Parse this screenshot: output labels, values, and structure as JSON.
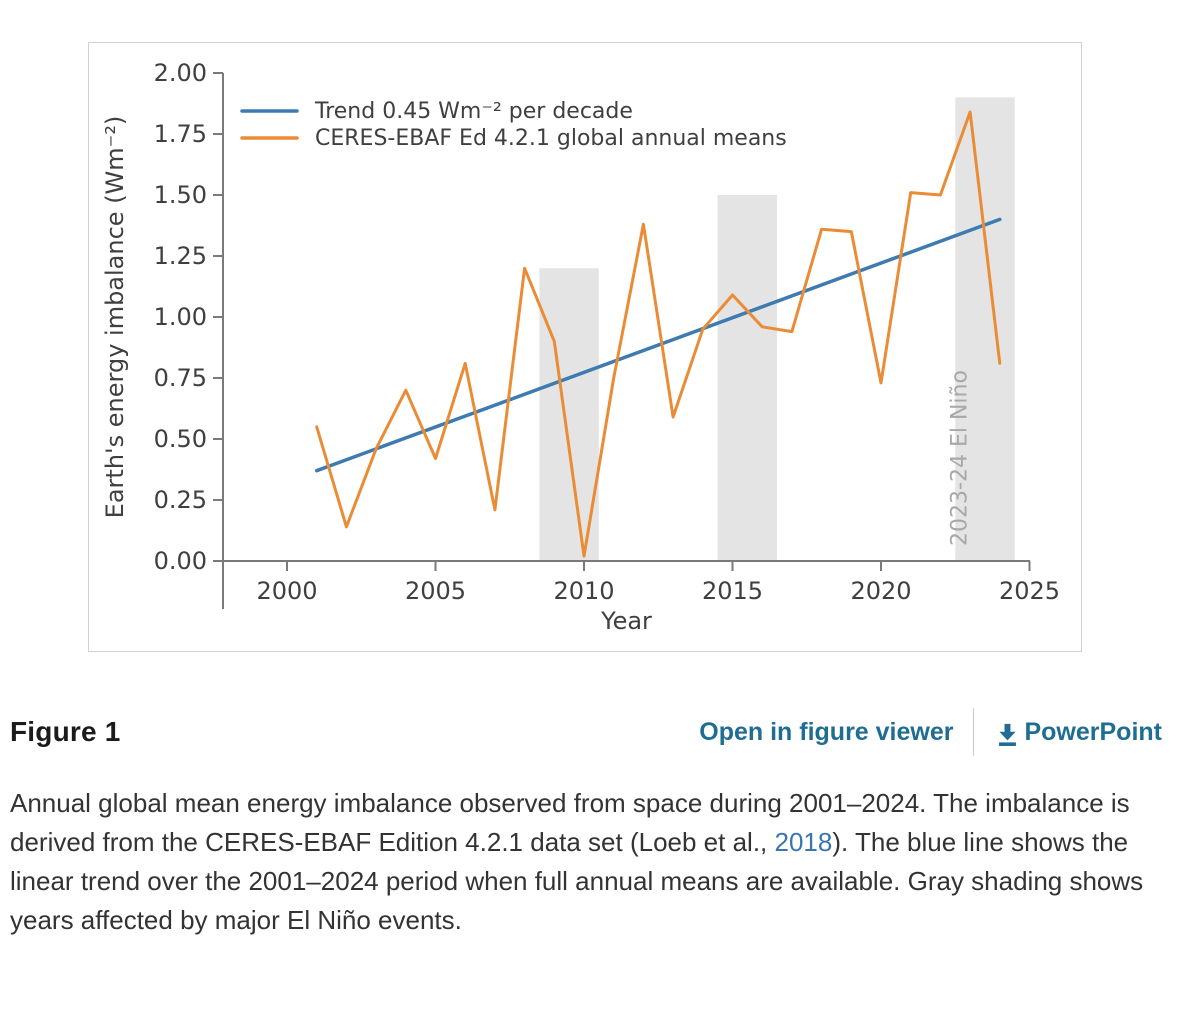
{
  "figure_bar": {
    "title": "Figure 1",
    "open_link": "Open in figure viewer",
    "powerpoint_link": "PowerPoint"
  },
  "caption": {
    "text_before_link": "Annual global mean energy imbalance observed from space during 2001–2024. The imbalance is derived from the CERES-EBAF Edition 4.2.1 data set (Loeb et al., ",
    "link": "2018",
    "text_after_link": "). The blue line shows the linear trend over the 2001–2024 period when full annual means are available. Gray shading shows years affected by major El Niño events."
  },
  "colors": {
    "trend_blue": "#3d7bb0",
    "series_orange": "#ea8c35",
    "band_gray": "#e4e4e4",
    "band_label_gray": "#a8a8a8",
    "axis_gray": "#7a7a7a",
    "tick_text": "#3f3f3f",
    "link_teal": "#1f6d93",
    "caption_link_blue": "#3a75b0"
  },
  "chart_data": {
    "type": "line",
    "title": "",
    "xlabel": "Year",
    "ylabel": "Earth's energy imbalance (Wm⁻²)",
    "xlim": [
      1998,
      2026
    ],
    "ylim": [
      0.0,
      2.0
    ],
    "grid": false,
    "legend_position": "upper left",
    "x_ticks": [
      2000,
      2005,
      2010,
      2015,
      2020,
      2025
    ],
    "y_ticks": [
      "0.00",
      "0.25",
      "0.50",
      "0.75",
      "1.00",
      "1.25",
      "1.50",
      "1.75",
      "2.00"
    ],
    "series": [
      {
        "name": "Trend 0.45 Wm⁻² per decade",
        "type": "line",
        "color": "#3d7bb0",
        "x": [
          2001,
          2024
        ],
        "values": [
          0.37,
          1.4
        ]
      },
      {
        "name": "CERES-EBAF Ed 4.2.1 global annual means",
        "type": "line",
        "color": "#ea8c35",
        "x": [
          2001,
          2002,
          2003,
          2004,
          2005,
          2006,
          2007,
          2008,
          2009,
          2010,
          2011,
          2012,
          2013,
          2014,
          2015,
          2016,
          2017,
          2018,
          2019,
          2020,
          2021,
          2022,
          2023,
          2024
        ],
        "values": [
          0.55,
          0.14,
          0.46,
          0.7,
          0.42,
          0.81,
          0.21,
          1.2,
          0.9,
          0.02,
          0.75,
          1.38,
          0.59,
          0.95,
          1.09,
          0.96,
          0.94,
          1.36,
          1.35,
          0.73,
          1.51,
          1.5,
          1.84,
          0.81
        ]
      }
    ],
    "bands": [
      {
        "x0": 2008.5,
        "x1": 2010.5,
        "top": 1.2,
        "label": ""
      },
      {
        "x0": 2014.5,
        "x1": 2016.5,
        "top": 1.5,
        "label": ""
      },
      {
        "x0": 2022.5,
        "x1": 2024.5,
        "top": 1.9,
        "label": "2023-24 El Niño"
      }
    ],
    "band_color": "#e4e4e4",
    "band_label_color": "#a8a8a8"
  }
}
